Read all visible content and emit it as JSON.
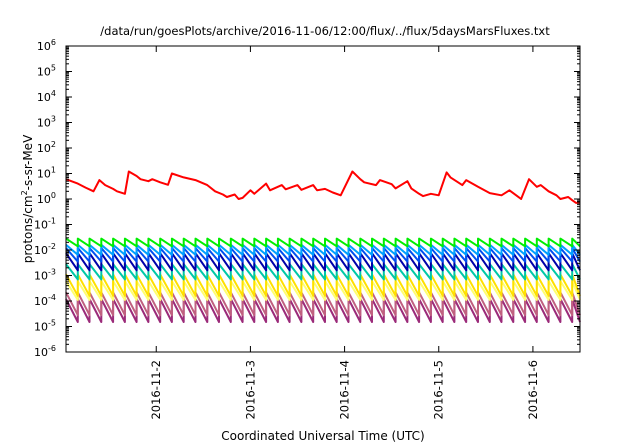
{
  "chart_data": {
    "type": "line",
    "title": "/data/run/goesPlots/archive/2016-11-06/12:00/flux/../flux/5daysMarsFluxes.txt",
    "xlabel": "Coordinated Universal Time (UTC)",
    "ylabel_parts": {
      "base": "protons/cm",
      "sup": "2",
      "rest": "-s-sr-MeV"
    },
    "y_scale": "log",
    "ylim": [
      1e-06,
      1000000.0
    ],
    "y_ticks": [
      {
        "base": "10",
        "exp": "-6",
        "value": 1e-06
      },
      {
        "base": "10",
        "exp": "-5",
        "value": 1e-05
      },
      {
        "base": "10",
        "exp": "-4",
        "value": 0.0001
      },
      {
        "base": "10",
        "exp": "-3",
        "value": 0.001
      },
      {
        "base": "10",
        "exp": "-2",
        "value": 0.01
      },
      {
        "base": "10",
        "exp": "-1",
        "value": 0.1
      },
      {
        "base": "10",
        "exp": "0",
        "value": 1
      },
      {
        "base": "10",
        "exp": "1",
        "value": 10.0
      },
      {
        "base": "10",
        "exp": "2",
        "value": 100.0
      },
      {
        "base": "10",
        "exp": "3",
        "value": 1000.0
      },
      {
        "base": "10",
        "exp": "4",
        "value": 10000.0
      },
      {
        "base": "10",
        "exp": "5",
        "value": 100000.0
      },
      {
        "base": "10",
        "exp": "6",
        "value": 1000000.0
      }
    ],
    "x_range": [
      "2016-11-01 01:00",
      "2016-11-06 12:00"
    ],
    "x_ticks": [
      {
        "label": "2016-11-2",
        "value": "2016-11-02 00:00"
      },
      {
        "label": "2016-11-3",
        "value": "2016-11-03 00:00"
      },
      {
        "label": "2016-11-4",
        "value": "2016-11-04 00:00"
      },
      {
        "label": "2016-11-5",
        "value": "2016-11-05 00:00"
      },
      {
        "label": "2016-11-6",
        "value": "2016-11-06 00:00"
      }
    ],
    "grid": false,
    "legend": "none",
    "sawtooth_period_hours": 3,
    "series": [
      {
        "color": "#ff0000",
        "style": "trend",
        "x": [
          "2016-11-01 01:00",
          "2016-11-01 04:00",
          "2016-11-01 06:00",
          "2016-11-01 08:00",
          "2016-11-01 09:30",
          "2016-11-01 11:00",
          "2016-11-01 13:00",
          "2016-11-01 14:00",
          "2016-11-01 16:00",
          "2016-11-01 17:00",
          "2016-11-01 19:00",
          "2016-11-01 20:00",
          "2016-11-01 22:00",
          "2016-11-01 23:00",
          "2016-11-02 01:00",
          "2016-11-02 03:00",
          "2016-11-02 04:00",
          "2016-11-02 07:00",
          "2016-11-02 10:00",
          "2016-11-02 13:00",
          "2016-11-02 15:00",
          "2016-11-02 17:00",
          "2016-11-02 18:00",
          "2016-11-02 20:00",
          "2016-11-02 21:00",
          "2016-11-02 22:00",
          "2016-11-03 00:00",
          "2016-11-03 01:00",
          "2016-11-03 04:00",
          "2016-11-03 05:00",
          "2016-11-03 08:00",
          "2016-11-03 09:00",
          "2016-11-03 12:00",
          "2016-11-03 13:00",
          "2016-11-03 16:00",
          "2016-11-03 17:00",
          "2016-11-03 19:00",
          "2016-11-03 21:00",
          "2016-11-03 23:00",
          "2016-11-04 02:00",
          "2016-11-04 04:00",
          "2016-11-04 05:00",
          "2016-11-04 08:00",
          "2016-11-04 09:00",
          "2016-11-04 12:00",
          "2016-11-04 13:00",
          "2016-11-04 16:00",
          "2016-11-04 17:00",
          "2016-11-04 19:00",
          "2016-11-04 20:00",
          "2016-11-04 22:00",
          "2016-11-05 00:00",
          "2016-11-05 02:00",
          "2016-11-05 03:00",
          "2016-11-05 06:00",
          "2016-11-05 07:00",
          "2016-11-05 10:00",
          "2016-11-05 13:00",
          "2016-11-05 16:00",
          "2016-11-05 18:00",
          "2016-11-05 20:00",
          "2016-11-05 21:00",
          "2016-11-05 23:00",
          "2016-11-06 01:00",
          "2016-11-06 02:00",
          "2016-11-06 04:00",
          "2016-11-06 06:00",
          "2016-11-06 07:00",
          "2016-11-06 09:00",
          "2016-11-06 10:00",
          "2016-11-06 11:00",
          "2016-11-06 12:00"
        ],
        "y": [
          6,
          4,
          2.8,
          2,
          5.5,
          3.5,
          2.5,
          2,
          1.6,
          12,
          8,
          6,
          5,
          6,
          4.5,
          3.6,
          10,
          7,
          5.5,
          3.5,
          2,
          1.5,
          1.2,
          1.5,
          1,
          1.1,
          2.2,
          1.6,
          4,
          2.2,
          3.5,
          2.4,
          3.5,
          2.3,
          3.5,
          2.2,
          2.5,
          1.8,
          1.4,
          12,
          6,
          4.5,
          3.5,
          5.5,
          3.8,
          2.6,
          5,
          2.6,
          1.6,
          1.3,
          1.6,
          1.4,
          11,
          7,
          3.5,
          5.5,
          3,
          1.7,
          1.4,
          2.2,
          1.3,
          1,
          6,
          3,
          3.5,
          2,
          1.4,
          1,
          1.2,
          0.9,
          0.7,
          0.7
        ]
      },
      {
        "color": "#00ee00",
        "style": "sawtooth",
        "peak": 0.028,
        "trough": 0.014
      },
      {
        "color": "#00a0ff",
        "style": "sawtooth",
        "peak": 0.016,
        "trough": 0.0065
      },
      {
        "color": "#0050f0",
        "style": "sawtooth",
        "peak": 0.012,
        "trough": 0.0035
      },
      {
        "color": "#0000aa",
        "style": "sawtooth",
        "peak": 0.0075,
        "trough": 0.0016
      },
      {
        "color": "#00c8a8",
        "style": "sawtooth",
        "peak": 0.0028,
        "trough": 0.0007
      },
      {
        "color": "#ffe000",
        "style": "sawtooth",
        "peak": 0.0011,
        "trough": 0.00016
      },
      {
        "color": "#ffff70",
        "style": "sawtooth",
        "peak": 0.0006,
        "trough": 0.00011
      },
      {
        "color": "#c06080",
        "style": "sawtooth",
        "peak": 0.00022,
        "trough": 2.8e-05
      },
      {
        "color": "#9b2b7a",
        "style": "sawtooth",
        "peak": 0.00012,
        "trough": 1.5e-05
      }
    ]
  }
}
